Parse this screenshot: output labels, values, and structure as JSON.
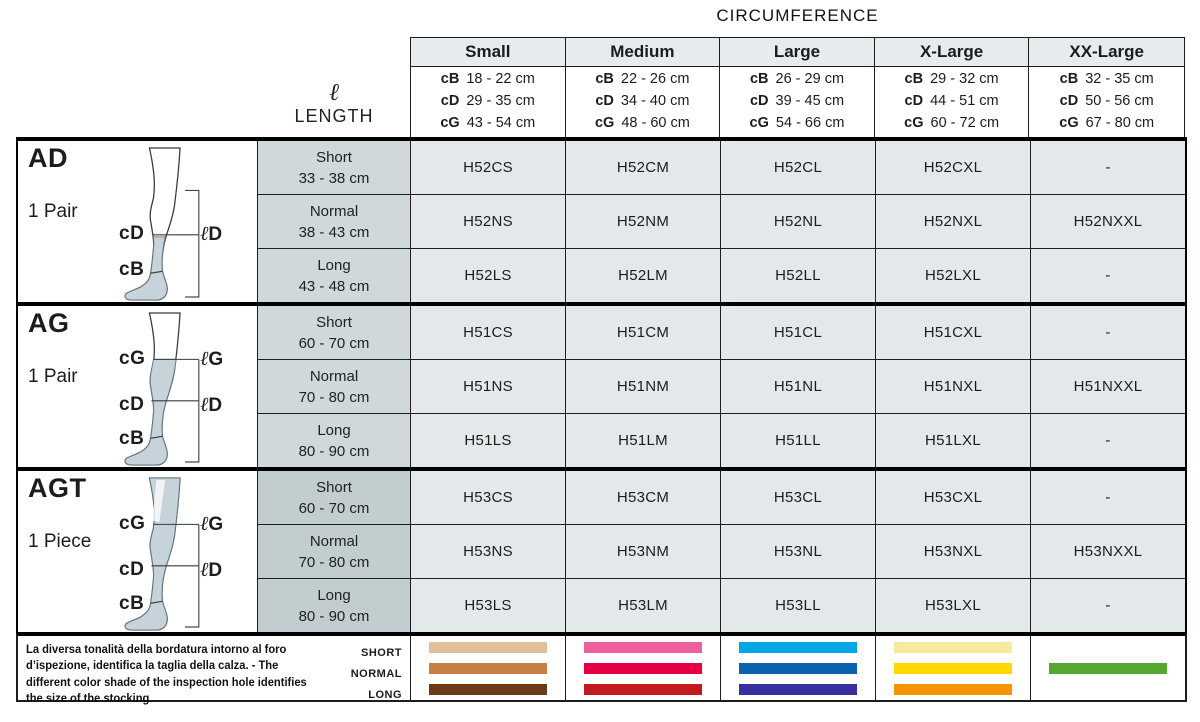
{
  "header": {
    "title": "CIRCUMFERENCE",
    "length_symbol": "ℓ",
    "length_label": "LENGTH",
    "sizes": [
      {
        "name": "Small",
        "measures": [
          [
            "cB",
            "18 - 22 cm"
          ],
          [
            "cD",
            "29 - 35 cm"
          ],
          [
            "cG",
            "43 - 54 cm"
          ]
        ]
      },
      {
        "name": "Medium",
        "measures": [
          [
            "cB",
            "22 - 26 cm"
          ],
          [
            "cD",
            "34 - 40 cm"
          ],
          [
            "cG",
            "48 - 60 cm"
          ]
        ]
      },
      {
        "name": "Large",
        "measures": [
          [
            "cB",
            "26 - 29 cm"
          ],
          [
            "cD",
            "39 - 45 cm"
          ],
          [
            "cG",
            "54 - 66 cm"
          ]
        ]
      },
      {
        "name": "X-Large",
        "measures": [
          [
            "cB",
            "29 - 32 cm"
          ],
          [
            "cD",
            "44 - 51 cm"
          ],
          [
            "cG",
            "60 - 72 cm"
          ]
        ]
      },
      {
        "name": "XX-Large",
        "measures": [
          [
            "cB",
            "32 - 35 cm"
          ],
          [
            "cD",
            "50 - 56 cm"
          ],
          [
            "cG",
            "67 - 80 cm"
          ]
        ]
      }
    ]
  },
  "sections": [
    {
      "code": "AD",
      "pack": "1 Pair",
      "diagram": {
        "c_labels": [
          "cD",
          "cB"
        ],
        "l_labels": [
          "ℓD"
        ]
      },
      "rows": [
        {
          "length": "Short",
          "range": "33 - 38 cm",
          "codes": [
            "H52CS",
            "H52CM",
            "H52CL",
            "H52CXL",
            "-"
          ]
        },
        {
          "length": "Normal",
          "range": "38 - 43 cm",
          "codes": [
            "H52NS",
            "H52NM",
            "H52NL",
            "H52NXL",
            "H52NXXL"
          ]
        },
        {
          "length": "Long",
          "range": "43 - 48 cm",
          "codes": [
            "H52LS",
            "H52LM",
            "H52LL",
            "H52LXL",
            "-"
          ]
        }
      ]
    },
    {
      "code": "AG",
      "pack": "1 Pair",
      "diagram": {
        "c_labels": [
          "cG",
          "cD",
          "cB"
        ],
        "l_labels": [
          "ℓG",
          "ℓD"
        ]
      },
      "rows": [
        {
          "length": "Short",
          "range": "60 - 70 cm",
          "codes": [
            "H51CS",
            "H51CM",
            "H51CL",
            "H51CXL",
            "-"
          ]
        },
        {
          "length": "Normal",
          "range": "70 - 80 cm",
          "codes": [
            "H51NS",
            "H51NM",
            "H51NL",
            "H51NXL",
            "H51NXXL"
          ]
        },
        {
          "length": "Long",
          "range": "80 - 90 cm",
          "codes": [
            "H51LS",
            "H51LM",
            "H51LL",
            "H51LXL",
            "-"
          ]
        }
      ]
    },
    {
      "code": "AGT",
      "pack": "1 Piece",
      "diagram": {
        "c_labels": [
          "cG",
          "cD",
          "cB"
        ],
        "l_labels": [
          "ℓG",
          "ℓD"
        ]
      },
      "rows": [
        {
          "length": "Short",
          "range": "60 - 70 cm",
          "codes": [
            "H53CS",
            "H53CM",
            "H53CL",
            "H53CXL",
            "-"
          ]
        },
        {
          "length": "Normal",
          "range": "70 - 80 cm",
          "codes": [
            "H53NS",
            "H53NM",
            "H53NL",
            "H53NXL",
            "H53NXXL"
          ]
        },
        {
          "length": "Long",
          "range": "80 - 90 cm",
          "codes": [
            "H53LS",
            "H53LM",
            "H53LL",
            "H53LXL",
            "-"
          ]
        }
      ]
    }
  ],
  "legend": {
    "note": "La diversa tonalità della bordatura intorno al foro d’ispezione, identifica la taglia della calza. - The different color shade of the inspection hole identifies the size of the stocking.",
    "row_labels": [
      "SHORT",
      "NORMAL",
      "LONG"
    ],
    "columns": [
      {
        "size": "Small",
        "bars": [
          "#e0bf9b",
          "#c67f44",
          "#6b3a17"
        ]
      },
      {
        "size": "Medium",
        "bars": [
          "#ef5f9e",
          "#e50045",
          "#c31a1f"
        ]
      },
      {
        "size": "Large",
        "bars": [
          "#00a7e3",
          "#0b62ad",
          "#37309e"
        ]
      },
      {
        "size": "X-Large",
        "bars": [
          "#f7eaa0",
          "#ffd803",
          "#f39400"
        ]
      },
      {
        "size": "XX-Large",
        "bars": [
          "#56a72f"
        ]
      }
    ]
  },
  "colors": {
    "header_cell": "#e7ebed",
    "length_cell": "#cfd8da",
    "length_cell_agt": "#c2cdd0",
    "code_cell": "#e3e9eb",
    "border": "#1d1d1b",
    "sock_fill": "#c7d3da"
  }
}
